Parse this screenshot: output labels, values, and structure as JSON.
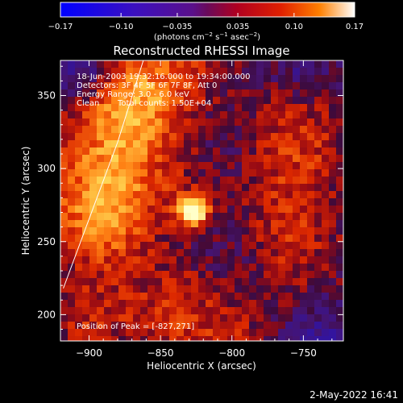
{
  "chart_data": {
    "type": "heatmap",
    "title": "Reconstructed RHESSI Image",
    "xlabel": "Heliocentric X (arcsec)",
    "ylabel": "Heliocentric Y (arcsec)",
    "xlim": [
      -920,
      -722
    ],
    "ylim": [
      182,
      374
    ],
    "x_ticks": [
      -900,
      -850,
      -800,
      -750
    ],
    "x_tick_labels": [
      "−900",
      "−850",
      "−800",
      "−750"
    ],
    "y_ticks": [
      200,
      250,
      300,
      350
    ],
    "y_tick_labels": [
      "200",
      "250",
      "300",
      "350"
    ],
    "colorbar": {
      "range": [
        -0.17,
        0.17
      ],
      "ticks": [
        -0.17,
        -0.1,
        -0.035,
        0.035,
        0.1,
        0.17
      ],
      "tick_labels": [
        "−0.17",
        "−0.10",
        "−0.035",
        "0.035",
        "0.10",
        "0.17"
      ],
      "units_prefix": "(photons cm",
      "units_exp1": "−2",
      "units_mid": " s",
      "units_exp2": "−1",
      "units_mid2": " asec",
      "units_exp3": "−2",
      "units_suffix": ")"
    },
    "peak": {
      "x": -827,
      "y": 271
    },
    "limb_line": [
      [
        -918,
        218
      ],
      [
        -880,
        318
      ],
      [
        -862,
        374
      ]
    ],
    "colors": {
      "background": "#000000",
      "negative": "#3a1aa0",
      "neutral": "#2a0a40",
      "positive_low": "#a00000",
      "positive_mid": "#e04000",
      "positive_high": "#ffc040",
      "peak": "#ffffc0"
    }
  },
  "annotations": {
    "line1": "18-Jun-2003 19:32:16.000 to 19:34:00.000",
    "line2": "Detectors: 3F 4F 5F 6F 7F 8F, Att 0",
    "line3": "Energy Range: 3.0 - 6.0 keV",
    "line4_left": "Clean",
    "line4_right": "Total counts: 1.50E+04",
    "peak_label": "Position of Peak = [-827,271]"
  },
  "footer": {
    "timestamp": "2-May-2022 16:41"
  }
}
